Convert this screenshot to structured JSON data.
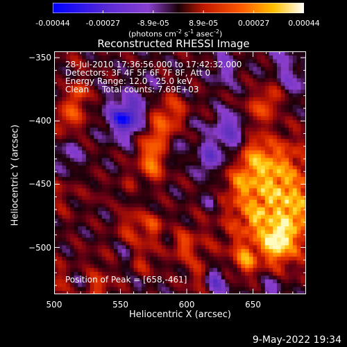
{
  "colorbar": {
    "ticks": [
      "-0.00044",
      "-0.00027",
      "-8.9e-05",
      "8.9e-05",
      "0.00027",
      "0.00044"
    ],
    "unit_label_parts": [
      "(photons cm",
      "-2",
      " s",
      "-1",
      " asec",
      "-2",
      ")"
    ],
    "colors": [
      "#0000ff",
      "#5a2bd6",
      "#8a3fd0",
      "#1a0008",
      "#c01800",
      "#ff5a00",
      "#ffc000",
      "#ffffff"
    ]
  },
  "chart_data": {
    "type": "heatmap",
    "title": "Reconstructed RHESSI Image",
    "xlabel": "Heliocentric X (arcsec)",
    "ylabel": "Heliocentric Y (arcsec)",
    "xlim": [
      500,
      690
    ],
    "ylim": [
      -537,
      -345
    ],
    "x_ticks": [
      500,
      550,
      600,
      650
    ],
    "y_ticks": [
      -350,
      -400,
      -450,
      -500
    ],
    "annotations": [
      "28-Jul-2010 17:36:56.000 to 17:42:32.000",
      "Detectors: 3F 4F 5F 6F 7F 8F, Att 0",
      "Energy Range: 12.0 - 25.0 keV",
      "Clean     Total counts: 7.69E+03"
    ],
    "peak_label": "Position of Peak = [658,-461]",
    "peak": [
      658,
      -461
    ],
    "bright_region_center": [
      668,
      -466
    ]
  },
  "footer": {
    "timestamp": "9-May-2022 19:34"
  }
}
